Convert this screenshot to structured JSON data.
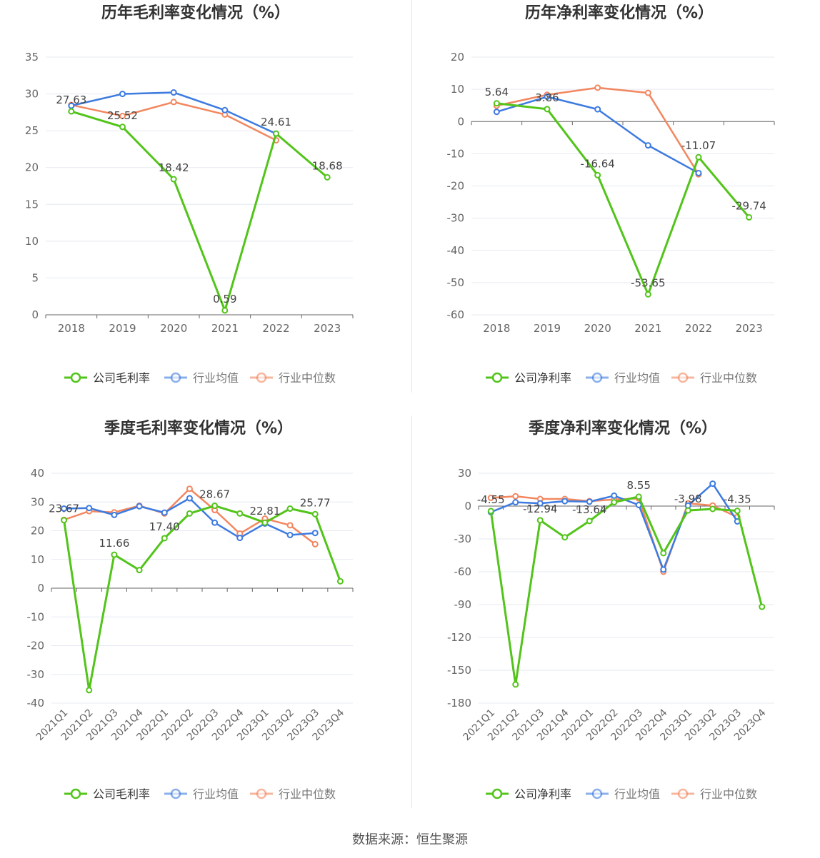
{
  "footer": "数据来源：恒生聚源",
  "colors": {
    "company": "#52c41a",
    "industry_avg": "#3d7be0",
    "industry_median": "#f2875f"
  },
  "chart_data": [
    {
      "type": "line",
      "title": "历年毛利率变化情况（%）",
      "categories": [
        "2018",
        "2019",
        "2020",
        "2021",
        "2022",
        "2023"
      ],
      "ylim": [
        0,
        35
      ],
      "yticks": [
        0,
        5,
        10,
        15,
        20,
        25,
        30,
        35
      ],
      "legend": "bottom",
      "series": [
        {
          "name": "公司毛利率",
          "values": [
            27.63,
            25.52,
            18.42,
            0.59,
            24.61,
            18.68
          ]
        },
        {
          "name": "行业均值",
          "values": [
            28.4,
            30.0,
            30.2,
            27.8,
            24.6,
            null
          ]
        },
        {
          "name": "行业中位数",
          "values": [
            28.5,
            27.0,
            28.9,
            27.2,
            23.7,
            null
          ]
        }
      ],
      "data_labels": [
        "27.63",
        "25.52",
        "18.42",
        "0.59",
        "24.61",
        "18.68"
      ]
    },
    {
      "type": "line",
      "title": "历年净利率变化情况（%）",
      "categories": [
        "2018",
        "2019",
        "2020",
        "2021",
        "2022",
        "2023"
      ],
      "ylim": [
        -60,
        20
      ],
      "yticks": [
        -60,
        -50,
        -40,
        -30,
        -20,
        -10,
        0,
        10,
        20
      ],
      "legend": "bottom",
      "series": [
        {
          "name": "公司净利率",
          "values": [
            5.64,
            3.86,
            -16.64,
            -53.65,
            -11.07,
            -29.74
          ]
        },
        {
          "name": "行业均值",
          "values": [
            3.0,
            7.7,
            3.8,
            -7.4,
            -16.0,
            null
          ]
        },
        {
          "name": "行业中位数",
          "values": [
            4.9,
            8.3,
            10.5,
            8.9,
            -16.4,
            null
          ]
        }
      ],
      "data_labels": [
        "5.64",
        "3.86",
        "-16.64",
        "-53.65",
        "-11.07",
        "-29.74"
      ]
    },
    {
      "type": "line",
      "title": "季度毛利率变化情况（%）",
      "categories": [
        "2021Q1",
        "2021Q2",
        "2021Q3",
        "2021Q4",
        "2022Q1",
        "2022Q2",
        "2022Q3",
        "2022Q4",
        "2023Q1",
        "2023Q2",
        "2023Q3",
        "2023Q4"
      ],
      "ylim": [
        -40,
        40
      ],
      "yticks": [
        -40,
        -30,
        -20,
        -10,
        0,
        10,
        20,
        30,
        40
      ],
      "legend": "bottom",
      "series": [
        {
          "name": "公司毛利率",
          "values": [
            23.67,
            -35.5,
            11.66,
            6.3,
            17.4,
            26.0,
            28.67,
            26.0,
            22.81,
            27.7,
            25.77,
            2.4
          ]
        },
        {
          "name": "行业均值",
          "values": [
            27.7,
            27.9,
            25.5,
            28.5,
            26.3,
            31.3,
            22.8,
            17.5,
            22.5,
            18.5,
            19.2,
            null
          ]
        },
        {
          "name": "行业中位数",
          "values": [
            23.8,
            26.8,
            26.4,
            28.7,
            26.0,
            34.6,
            27.2,
            19.0,
            24.2,
            21.9,
            15.3,
            null
          ]
        }
      ],
      "data_labels": [
        "23.67",
        "",
        "11.66",
        "",
        "17.40",
        "",
        "28.67",
        "",
        "22.81",
        "",
        "25.77",
        ""
      ]
    },
    {
      "type": "line",
      "title": "季度净利率变化情况（%）",
      "categories": [
        "2021Q1",
        "2021Q2",
        "2021Q3",
        "2021Q4",
        "2022Q1",
        "2022Q2",
        "2022Q3",
        "2022Q4",
        "2023Q1",
        "2023Q2",
        "2023Q3",
        "2023Q4"
      ],
      "ylim": [
        -180,
        30
      ],
      "yticks": [
        -180,
        -150,
        -120,
        -90,
        -60,
        -30,
        0,
        30
      ],
      "legend": "bottom",
      "series": [
        {
          "name": "公司净利率",
          "values": [
            -4.55,
            -163.0,
            -12.94,
            -28.5,
            -13.64,
            3.5,
            8.55,
            -43.0,
            -3.98,
            -2.6,
            -4.35,
            -92.0
          ]
        },
        {
          "name": "行业均值",
          "values": [
            -5.5,
            3.5,
            2.5,
            4.5,
            4.0,
            9.5,
            1.0,
            -58.0,
            0.5,
            20.5,
            -14.0,
            null
          ]
        },
        {
          "name": "行业中位数",
          "values": [
            7.5,
            9.0,
            6.5,
            6.5,
            4.5,
            6.0,
            7.0,
            -60.0,
            2.5,
            0.5,
            -10.0,
            null
          ]
        }
      ],
      "data_labels": [
        "-4.55",
        "",
        "-12.94",
        "",
        "-13.64",
        "",
        "8.55",
        "",
        "-3.98",
        "",
        "-4.35",
        ""
      ]
    }
  ]
}
